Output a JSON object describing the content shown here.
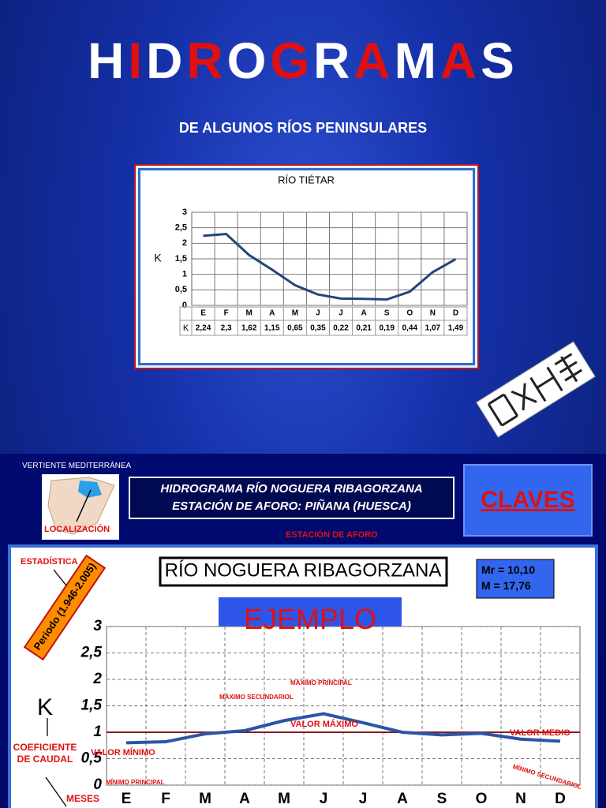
{
  "header": {
    "title": "HIDROGRAMAS",
    "subtitle": "DE ALGUNOS RÍOS PENINSULARES"
  },
  "section": {
    "slope": "VERTIENTE  MEDITERRÁNEA",
    "heading": [
      "HIDROGRAMA  RÍO  NOGUERA  RIBAGORZANA",
      "ESTACIÓN DE AFORO:   PIÑANA (HUESCA)"
    ],
    "keys_button": "CLAVES",
    "location_label": "LOCALIZACIÓN",
    "station_label": "ESTACIÓN DE AFORO"
  },
  "chart_data": [
    {
      "type": "line",
      "title": "RÍO TIÉTAR",
      "y_label": "K",
      "table_row_label": "K",
      "categories": [
        "E",
        "F",
        "M",
        "A",
        "M",
        "J",
        "J",
        "A",
        "S",
        "O",
        "N",
        "D"
      ],
      "values": [
        2.24,
        2.3,
        1.62,
        1.15,
        0.65,
        0.35,
        0.22,
        0.21,
        0.19,
        0.44,
        1.07,
        1.49
      ],
      "value_labels": [
        "2,24",
        "2,3",
        "1,62",
        "1,15",
        "0,65",
        "0,35",
        "0,22",
        "0,21",
        "0,19",
        "0,44",
        "1,07",
        "1,49"
      ],
      "color": "#24457a",
      "ylim": [
        0,
        3
      ],
      "yticks": [
        0,
        {
          "value": 0.5,
          "label": "0,5"
        },
        1,
        {
          "value": 1.5,
          "label": "1,5"
        },
        2,
        {
          "value": 2.5,
          "label": "2,5"
        },
        3
      ],
      "grid": true
    },
    {
      "type": "line",
      "title": "RÍO NOGUERA RIBAGORZANA",
      "y_label": "K",
      "x_label": "MESES",
      "categories": [
        "E",
        "F",
        "M",
        "A",
        "M",
        "J",
        "J",
        "A",
        "S",
        "O",
        "N",
        "D"
      ],
      "values": [
        0.8,
        0.82,
        0.97,
        1.03,
        1.22,
        1.35,
        1.18,
        1.0,
        0.95,
        0.98,
        0.87,
        0.83
      ],
      "color": "#2a55a8",
      "ylim": [
        0,
        3
      ],
      "yticks": [
        0,
        {
          "value": 0.5,
          "label": "0,5"
        },
        1,
        {
          "value": 1.5,
          "label": "1,5"
        },
        2,
        {
          "value": 2.5,
          "label": "2,5"
        },
        3
      ],
      "grid": true,
      "reference_line": {
        "value": 1,
        "color": "#8b1a1a"
      },
      "stats": [
        "Mr = 10,10",
        "M = 17,76"
      ],
      "stats_label": "ESTADÍSTICA",
      "period_label": "Periodo (1.946-2.005)",
      "example_label": "EJEMPLO",
      "y_label_note": "COEFICIENTE DE CAUDAL",
      "annotations": {
        "max_main": "MÁXIMO PRINCIPAL",
        "max_secondary": "MÁXIMO SECUNDARIOL",
        "max_value": "VALOR MÁXIMO",
        "mean_value": "VALOR MEDIO",
        "min_value": "VALOR MÍNIMO",
        "min_main": "MÍNIMO PRINCIPAL",
        "min_secondary": "MÍNIMO SECUNDARIOL"
      }
    }
  ]
}
